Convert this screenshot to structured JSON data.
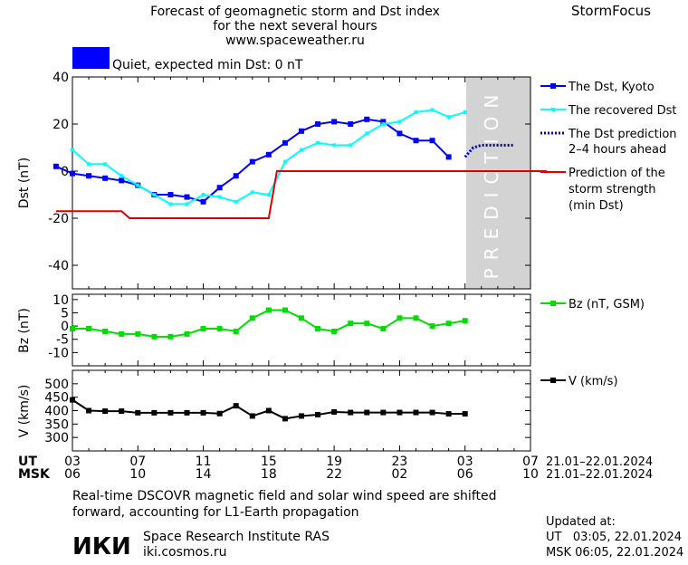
{
  "header": {
    "title_line1": "Forecast of geomagnetic storm and Dst index",
    "title_line2": "for the next several hours",
    "site": "www.spaceweather.ru",
    "brand": "StormFocus",
    "status_text": "Quiet, expected min Dst: 0 nT",
    "status_color": "#0000ff"
  },
  "prediction_label": "PREDICTION",
  "legend": {
    "dst_kyoto": "The Dst, Kyoto",
    "dst_recovered": "The recovered Dst",
    "dst_prediction_1": "The Dst prediction",
    "dst_prediction_2": "2–4 hours ahead",
    "storm_1": "Prediction of the",
    "storm_2": "storm strength",
    "storm_3": "(min Dst)",
    "bz": "Bz (nT, GSM)",
    "v": "V (km/s)"
  },
  "time_axis": {
    "ut_label": "UT",
    "msk_label": "MSK",
    "ut_ticks": [
      "03",
      "07",
      "11",
      "15",
      "19",
      "23",
      "03",
      "07"
    ],
    "msk_ticks": [
      "06",
      "10",
      "14",
      "18",
      "22",
      "02",
      "06",
      "10"
    ],
    "ut_range": "21.01–22.01.2024",
    "msk_range": "21.01–22.01.2024"
  },
  "footer": {
    "note_line1": "Real-time DSCOVR magnetic field and solar wind speed are shifted",
    "note_line2": "forward, accounting for L1-Earth propagation",
    "logo_text": "ИКИ",
    "institute": "Space Research Institute RAS",
    "website": "iki.cosmos.ru",
    "updated_label": "Updated at:",
    "updated_ut": "UT   03:05, 22.01.2024",
    "updated_msk": "MSK 06:05, 22.01.2024"
  },
  "chart_data": [
    {
      "type": "line",
      "name": "dst-panel",
      "ylabel": "Dst (nT)",
      "ylim": [
        -50,
        40
      ],
      "yticks": [
        40,
        20,
        0,
        -20,
        -40
      ],
      "x_hours_ut_21jan": [
        2,
        3,
        4,
        5,
        6,
        7,
        8,
        9,
        10,
        11,
        12,
        13,
        14,
        15,
        16,
        17,
        18,
        19,
        20,
        21,
        22,
        23,
        24,
        25,
        26,
        27,
        28,
        29,
        30,
        31,
        32
      ],
      "series": [
        {
          "name": "The Dst, Kyoto",
          "color": "#0000ff",
          "x": [
            2,
            3,
            4,
            5,
            6,
            7,
            8,
            9,
            10,
            11,
            12,
            13,
            14,
            15,
            16,
            17,
            18,
            19,
            20,
            21,
            22,
            23,
            24,
            25,
            26,
            27
          ],
          "values": [
            2,
            -1,
            -2,
            -3,
            -4,
            -6,
            -10,
            -10,
            -11,
            -13,
            -7,
            -2,
            4,
            7,
            12,
            17,
            20,
            21,
            20,
            22,
            21,
            16,
            13,
            13,
            6,
            null
          ]
        },
        {
          "name": "The recovered Dst",
          "color": "#00ffff",
          "x": [
            3,
            4,
            5,
            6,
            7,
            8,
            9,
            10,
            11,
            12,
            13,
            14,
            15,
            16,
            17,
            18,
            19,
            20,
            21,
            22,
            23,
            24,
            25,
            26,
            27,
            28
          ],
          "values": [
            9,
            3,
            3,
            -2,
            -6,
            -10,
            -14,
            -14,
            -10,
            -11,
            -13,
            -9,
            -10,
            4,
            9,
            12,
            11,
            11,
            16,
            20,
            21,
            25,
            26,
            23,
            25,
            null
          ]
        },
        {
          "name": "The Dst prediction 2–4 hours ahead",
          "color": "#0000cc",
          "style": "dotted",
          "x": [
            27,
            27.5,
            28,
            29,
            30
          ],
          "values": [
            6,
            10,
            11,
            11,
            11
          ]
        },
        {
          "name": "Prediction of the storm strength (min Dst)",
          "color": "#dd0000",
          "style": "step",
          "x": [
            2,
            6,
            6.5,
            7,
            10,
            15,
            15.5,
            16,
            32
          ],
          "values": [
            -17,
            -17,
            -20,
            -20,
            -20,
            -20,
            0,
            0,
            0
          ]
        }
      ],
      "prediction_region_x": [
        26.2,
        32
      ]
    },
    {
      "type": "line",
      "name": "bz-panel",
      "ylabel": "Bz (nT)",
      "ylim": [
        -15,
        12
      ],
      "yticks": [
        10,
        5,
        0,
        -5,
        -10
      ],
      "series": [
        {
          "name": "Bz (nT, GSM)",
          "color": "#00dd00",
          "x": [
            3,
            4,
            5,
            6,
            7,
            8,
            9,
            10,
            11,
            12,
            13,
            14,
            15,
            16,
            17,
            18,
            19,
            20,
            21,
            22,
            23,
            24,
            25,
            26,
            27,
            28
          ],
          "values": [
            -1,
            -1,
            -2,
            -3,
            -3,
            -4,
            -4,
            -3,
            -1,
            -1,
            -2,
            3,
            6,
            6,
            3,
            -1,
            -2,
            1,
            1,
            -1,
            3,
            3,
            0,
            1,
            2,
            null
          ]
        }
      ]
    },
    {
      "type": "line",
      "name": "v-panel",
      "ylabel": "V (km/s)",
      "ylim": [
        250,
        550
      ],
      "yticks": [
        500,
        450,
        400,
        350,
        300
      ],
      "series": [
        {
          "name": "V (km/s)",
          "color": "#000000",
          "x": [
            2,
            3,
            4,
            5,
            6,
            7,
            8,
            9,
            10,
            11,
            12,
            13,
            14,
            15,
            16,
            17,
            18,
            19,
            20,
            21,
            22,
            23,
            24,
            25,
            26,
            27
          ],
          "values": [
            null,
            440,
            400,
            398,
            398,
            392,
            392,
            392,
            392,
            392,
            389,
            418,
            380,
            400,
            370,
            380,
            385,
            395,
            393,
            393,
            393,
            393,
            393,
            393,
            388,
            388
          ]
        }
      ]
    }
  ]
}
